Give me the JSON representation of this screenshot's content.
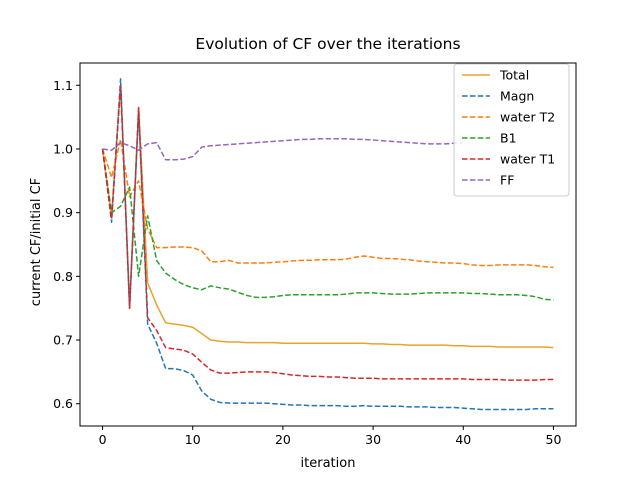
{
  "chart_data": {
    "type": "line",
    "title": "Evolution of CF over the iterations",
    "xlabel": "iteration",
    "ylabel": "current CF/initial CF",
    "xlim": [
      -2.5,
      52.5
    ],
    "ylim": [
      0.565,
      1.135
    ],
    "xticks": [
      0,
      10,
      20,
      30,
      40,
      50
    ],
    "yticks": [
      0.6,
      0.7,
      0.8,
      0.9,
      1.0,
      1.1
    ],
    "ytick_labels": [
      "0.6",
      "0.7",
      "0.8",
      "0.9",
      "1.0",
      "1.1"
    ],
    "grid": false,
    "legend_position": "top-right",
    "series": [
      {
        "name": "Total",
        "color": "#e6a42c",
        "dash": "solid",
        "x": [
          0,
          1,
          2,
          3,
          4,
          5,
          6,
          7,
          8,
          9,
          10,
          11,
          12,
          13,
          14,
          15,
          16,
          17,
          18,
          19,
          20,
          21,
          22,
          23,
          24,
          25,
          26,
          27,
          28,
          29,
          30,
          31,
          32,
          33,
          34,
          35,
          36,
          37,
          38,
          39,
          40,
          41,
          42,
          43,
          44,
          45,
          46,
          47,
          48,
          49,
          50
        ],
        "values": [
          1.0,
          0.895,
          1.1,
          0.755,
          1.065,
          0.79,
          0.755,
          0.727,
          0.725,
          0.723,
          0.72,
          0.71,
          0.7,
          0.698,
          0.697,
          0.697,
          0.696,
          0.696,
          0.696,
          0.696,
          0.695,
          0.695,
          0.695,
          0.695,
          0.695,
          0.695,
          0.695,
          0.695,
          0.695,
          0.695,
          0.694,
          0.694,
          0.693,
          0.693,
          0.692,
          0.692,
          0.692,
          0.692,
          0.692,
          0.691,
          0.691,
          0.69,
          0.69,
          0.69,
          0.689,
          0.689,
          0.689,
          0.689,
          0.689,
          0.689,
          0.688
        ]
      },
      {
        "name": "Magn",
        "color": "#1f77b4",
        "dash": "dashed",
        "x": [
          0,
          1,
          2,
          3,
          4,
          5,
          6,
          7,
          8,
          9,
          10,
          11,
          12,
          13,
          14,
          15,
          16,
          17,
          18,
          19,
          20,
          21,
          22,
          23,
          24,
          25,
          26,
          27,
          28,
          29,
          30,
          31,
          32,
          33,
          34,
          35,
          36,
          37,
          38,
          39,
          40,
          41,
          42,
          43,
          44,
          45,
          46,
          47,
          48,
          49,
          50
        ],
        "values": [
          1.0,
          0.885,
          1.11,
          0.75,
          1.06,
          0.725,
          0.695,
          0.655,
          0.655,
          0.652,
          0.645,
          0.62,
          0.607,
          0.602,
          0.601,
          0.601,
          0.601,
          0.601,
          0.601,
          0.6,
          0.599,
          0.598,
          0.598,
          0.597,
          0.597,
          0.597,
          0.597,
          0.596,
          0.596,
          0.597,
          0.596,
          0.596,
          0.596,
          0.596,
          0.595,
          0.595,
          0.595,
          0.594,
          0.594,
          0.594,
          0.593,
          0.592,
          0.591,
          0.591,
          0.591,
          0.591,
          0.591,
          0.591,
          0.592,
          0.592,
          0.592
        ]
      },
      {
        "name": "water T2",
        "color": "#ff7f0e",
        "dash": "dashed",
        "x": [
          0,
          1,
          2,
          3,
          4,
          5,
          6,
          7,
          8,
          9,
          10,
          11,
          12,
          13,
          14,
          15,
          16,
          17,
          18,
          19,
          20,
          21,
          22,
          23,
          24,
          25,
          26,
          27,
          28,
          29,
          30,
          31,
          32,
          33,
          34,
          35,
          36,
          37,
          38,
          39,
          40,
          41,
          42,
          43,
          44,
          45,
          46,
          47,
          48,
          49,
          50
        ],
        "values": [
          1.0,
          0.955,
          1.015,
          0.925,
          0.95,
          0.875,
          0.845,
          0.845,
          0.846,
          0.846,
          0.845,
          0.84,
          0.823,
          0.823,
          0.825,
          0.821,
          0.821,
          0.821,
          0.821,
          0.822,
          0.823,
          0.824,
          0.825,
          0.825,
          0.826,
          0.826,
          0.826,
          0.827,
          0.83,
          0.832,
          0.83,
          0.828,
          0.828,
          0.827,
          0.826,
          0.824,
          0.823,
          0.822,
          0.821,
          0.821,
          0.82,
          0.818,
          0.817,
          0.817,
          0.818,
          0.818,
          0.818,
          0.818,
          0.817,
          0.815,
          0.814
        ]
      },
      {
        "name": "B1",
        "color": "#2ca02c",
        "dash": "dashed",
        "x": [
          0,
          1,
          2,
          3,
          4,
          5,
          6,
          7,
          8,
          9,
          10,
          11,
          12,
          13,
          14,
          15,
          16,
          17,
          18,
          19,
          20,
          21,
          22,
          23,
          24,
          25,
          26,
          27,
          28,
          29,
          30,
          31,
          32,
          33,
          34,
          35,
          36,
          37,
          38,
          39,
          40,
          41,
          42,
          43,
          44,
          45,
          46,
          47,
          48,
          49,
          50
        ],
        "values": [
          1.0,
          0.9,
          0.91,
          0.94,
          0.8,
          0.895,
          0.825,
          0.805,
          0.795,
          0.787,
          0.782,
          0.779,
          0.785,
          0.782,
          0.78,
          0.775,
          0.77,
          0.767,
          0.767,
          0.768,
          0.77,
          0.771,
          0.771,
          0.771,
          0.771,
          0.771,
          0.771,
          0.772,
          0.774,
          0.774,
          0.774,
          0.773,
          0.772,
          0.772,
          0.772,
          0.773,
          0.774,
          0.774,
          0.774,
          0.774,
          0.774,
          0.773,
          0.773,
          0.772,
          0.771,
          0.771,
          0.771,
          0.77,
          0.768,
          0.764,
          0.763
        ]
      },
      {
        "name": "water T1",
        "color": "#d62728",
        "dash": "dashed",
        "x": [
          0,
          1,
          2,
          3,
          4,
          5,
          6,
          7,
          8,
          9,
          10,
          11,
          12,
          13,
          14,
          15,
          16,
          17,
          18,
          19,
          20,
          21,
          22,
          23,
          24,
          25,
          26,
          27,
          28,
          29,
          30,
          31,
          32,
          33,
          34,
          35,
          36,
          37,
          38,
          39,
          40,
          41,
          42,
          43,
          44,
          45,
          46,
          47,
          48,
          49,
          50
        ],
        "values": [
          1.0,
          0.89,
          1.1,
          0.75,
          1.065,
          0.735,
          0.715,
          0.688,
          0.686,
          0.684,
          0.678,
          0.665,
          0.653,
          0.648,
          0.648,
          0.649,
          0.65,
          0.65,
          0.65,
          0.649,
          0.647,
          0.645,
          0.644,
          0.643,
          0.643,
          0.642,
          0.642,
          0.641,
          0.64,
          0.64,
          0.64,
          0.639,
          0.639,
          0.639,
          0.639,
          0.639,
          0.639,
          0.639,
          0.639,
          0.639,
          0.639,
          0.638,
          0.638,
          0.638,
          0.638,
          0.637,
          0.637,
          0.637,
          0.637,
          0.638,
          0.638
        ]
      },
      {
        "name": "FF",
        "color": "#9467bd",
        "dash": "dashed",
        "x": [
          0,
          1,
          2,
          3,
          4,
          5,
          6,
          7,
          8,
          9,
          10,
          11,
          12,
          13,
          14,
          15,
          16,
          17,
          18,
          19,
          20,
          21,
          22,
          23,
          24,
          25,
          26,
          27,
          28,
          29,
          30,
          31,
          32,
          33,
          34,
          35,
          36,
          37,
          38,
          39,
          40
        ],
        "values": [
          1.0,
          0.998,
          1.01,
          1.005,
          0.998,
          1.008,
          1.01,
          0.983,
          0.983,
          0.984,
          0.988,
          1.003,
          1.005,
          1.006,
          1.007,
          1.008,
          1.009,
          1.01,
          1.011,
          1.012,
          1.013,
          1.014,
          1.015,
          1.015,
          1.016,
          1.016,
          1.016,
          1.016,
          1.015,
          1.015,
          1.014,
          1.013,
          1.012,
          1.011,
          1.01,
          1.009,
          1.008,
          1.008,
          1.008,
          1.009,
          1.01
        ]
      }
    ]
  }
}
